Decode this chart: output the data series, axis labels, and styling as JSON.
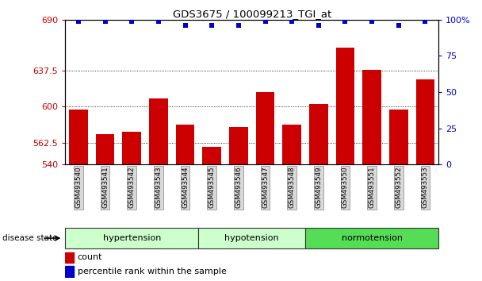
{
  "title": "GDS3675 / 100099213_TGI_at",
  "samples": [
    "GSM493540",
    "GSM493541",
    "GSM493542",
    "GSM493543",
    "GSM493544",
    "GSM493545",
    "GSM493546",
    "GSM493547",
    "GSM493548",
    "GSM493549",
    "GSM493550",
    "GSM493551",
    "GSM493552",
    "GSM493553"
  ],
  "counts": [
    597,
    571,
    574,
    608,
    581,
    558,
    579,
    615,
    581,
    603,
    661,
    638,
    597,
    628
  ],
  "percentile_y": [
    99,
    99,
    99,
    99,
    96,
    96,
    96,
    99,
    99,
    96,
    99,
    99,
    96,
    99
  ],
  "ylim": [
    540,
    690
  ],
  "yticks": [
    540,
    562.5,
    600,
    637.5,
    690
  ],
  "ytick_labels": [
    "540",
    "562.5",
    "600",
    "637.5",
    "690"
  ],
  "y2lim": [
    0,
    150
  ],
  "y2ticks": [
    0,
    25,
    50,
    75,
    100
  ],
  "y2tick_labels": [
    "0",
    "25",
    "50",
    "75",
    "100%"
  ],
  "bar_color": "#cc0000",
  "dot_color": "#0000cc",
  "group_info": [
    {
      "label": "hypertension",
      "start": 0,
      "end": 4,
      "color": "#ccffcc"
    },
    {
      "label": "hypotension",
      "start": 5,
      "end": 8,
      "color": "#ccffcc"
    },
    {
      "label": "normotension",
      "start": 9,
      "end": 13,
      "color": "#55dd55"
    }
  ],
  "disease_state_label": "disease state",
  "legend_count": "count",
  "legend_pct": "percentile rank within the sample",
  "xticklabel_bg": "#d8d8d8",
  "plot_bg": "#ffffff"
}
